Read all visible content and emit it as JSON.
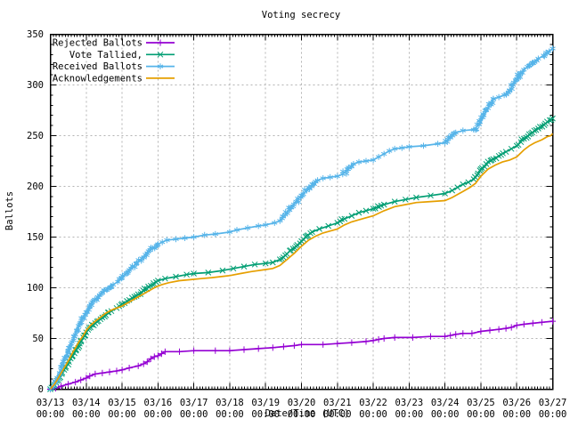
{
  "chart_data": {
    "type": "line",
    "title": "Voting secrecy",
    "xlabel": "Date/Time (UTC)",
    "ylabel": "Ballots",
    "grid": true,
    "legend_position": "top-left-inside",
    "x_axis": {
      "tick_dates": [
        "03/13",
        "03/14",
        "03/15",
        "03/16",
        "03/17",
        "03/18",
        "03/19",
        "03/20",
        "03/21",
        "03/22",
        "03/23",
        "03/24",
        "03/25",
        "03/26",
        "03/27"
      ],
      "tick_time_line": "00:00",
      "range_days": [
        0,
        14
      ],
      "minor_ticks_per_day": 12
    },
    "y_axis": {
      "ticks": [
        0,
        50,
        100,
        150,
        200,
        250,
        300,
        350
      ],
      "range": [
        0,
        350
      ],
      "minor_step": 10
    },
    "colors": {
      "rejected": "#9400d3",
      "tallied": "#009e73",
      "received": "#56b4e9",
      "acknowledgements": "#e69f00",
      "grid": "#b3b3b3",
      "border": "#000000"
    },
    "series": [
      {
        "name": "Rejected Ballots",
        "color": "#9400d3",
        "marker": "plus",
        "points": [
          [
            0,
            0
          ],
          [
            0.15,
            1
          ],
          [
            0.3,
            3
          ],
          [
            0.5,
            5
          ],
          [
            0.7,
            7
          ],
          [
            0.85,
            9
          ],
          [
            1.0,
            11
          ],
          [
            1.1,
            13
          ],
          [
            1.25,
            15
          ],
          [
            1.45,
            16
          ],
          [
            1.65,
            17
          ],
          [
            1.85,
            18
          ],
          [
            2.0,
            19
          ],
          [
            2.2,
            21
          ],
          [
            2.45,
            23
          ],
          [
            2.6,
            25
          ],
          [
            2.7,
            27
          ],
          [
            2.8,
            30
          ],
          [
            2.9,
            32
          ],
          [
            3.0,
            33
          ],
          [
            3.1,
            35
          ],
          [
            3.2,
            37
          ],
          [
            3.6,
            37
          ],
          [
            4.0,
            38
          ],
          [
            4.6,
            38
          ],
          [
            5.0,
            38
          ],
          [
            5.4,
            39
          ],
          [
            5.8,
            40
          ],
          [
            6.2,
            41
          ],
          [
            6.5,
            42
          ],
          [
            6.8,
            43
          ],
          [
            7.0,
            44
          ],
          [
            7.6,
            44
          ],
          [
            8.0,
            45
          ],
          [
            8.4,
            46
          ],
          [
            8.8,
            47
          ],
          [
            9.0,
            48
          ],
          [
            9.15,
            49
          ],
          [
            9.3,
            50
          ],
          [
            9.6,
            51
          ],
          [
            10.1,
            51
          ],
          [
            10.6,
            52
          ],
          [
            11.0,
            52
          ],
          [
            11.15,
            53
          ],
          [
            11.3,
            54
          ],
          [
            11.5,
            55
          ],
          [
            11.75,
            55
          ],
          [
            12.0,
            57
          ],
          [
            12.25,
            58
          ],
          [
            12.5,
            59
          ],
          [
            12.7,
            60
          ],
          [
            12.85,
            61
          ],
          [
            13.0,
            63
          ],
          [
            13.2,
            64
          ],
          [
            13.45,
            65
          ],
          [
            13.7,
            66
          ],
          [
            14.0,
            67
          ]
        ]
      },
      {
        "name": "Vote Tallied,",
        "color": "#009e73",
        "marker": "cross",
        "points": [
          [
            0,
            0
          ],
          [
            0.12,
            4
          ],
          [
            0.22,
            9
          ],
          [
            0.32,
            15
          ],
          [
            0.42,
            21
          ],
          [
            0.52,
            27
          ],
          [
            0.62,
            33
          ],
          [
            0.72,
            39
          ],
          [
            0.82,
            45
          ],
          [
            0.92,
            51
          ],
          [
            1.0,
            56
          ],
          [
            1.12,
            61
          ],
          [
            1.25,
            65
          ],
          [
            1.4,
            69
          ],
          [
            1.55,
            73
          ],
          [
            1.7,
            77
          ],
          [
            1.85,
            80
          ],
          [
            2.0,
            84
          ],
          [
            2.2,
            88
          ],
          [
            2.4,
            92
          ],
          [
            2.6,
            97
          ],
          [
            2.8,
            102
          ],
          [
            3.0,
            107
          ],
          [
            3.2,
            109
          ],
          [
            3.5,
            111
          ],
          [
            3.8,
            113
          ],
          [
            4.0,
            114
          ],
          [
            4.4,
            115
          ],
          [
            4.8,
            117
          ],
          [
            5.1,
            119
          ],
          [
            5.4,
            121
          ],
          [
            5.7,
            123
          ],
          [
            6.0,
            124
          ],
          [
            6.2,
            125
          ],
          [
            6.4,
            128
          ],
          [
            6.55,
            132
          ],
          [
            6.7,
            137
          ],
          [
            6.85,
            141
          ],
          [
            7.0,
            146
          ],
          [
            7.15,
            151
          ],
          [
            7.3,
            155
          ],
          [
            7.5,
            158
          ],
          [
            7.75,
            161
          ],
          [
            8.0,
            164
          ],
          [
            8.2,
            168
          ],
          [
            8.4,
            171
          ],
          [
            8.6,
            174
          ],
          [
            8.8,
            176
          ],
          [
            9.0,
            178
          ],
          [
            9.3,
            182
          ],
          [
            9.6,
            185
          ],
          [
            9.9,
            187
          ],
          [
            10.2,
            189
          ],
          [
            10.6,
            191
          ],
          [
            11.0,
            193
          ],
          [
            11.2,
            196
          ],
          [
            11.35,
            199
          ],
          [
            11.5,
            202
          ],
          [
            11.65,
            204
          ],
          [
            11.8,
            207
          ],
          [
            11.9,
            211
          ],
          [
            12.0,
            217
          ],
          [
            12.15,
            222
          ],
          [
            12.3,
            226
          ],
          [
            12.5,
            230
          ],
          [
            12.7,
            234
          ],
          [
            12.85,
            237
          ],
          [
            13.0,
            240
          ],
          [
            13.2,
            247
          ],
          [
            13.4,
            252
          ],
          [
            13.6,
            257
          ],
          [
            13.8,
            262
          ],
          [
            14.0,
            267
          ]
        ]
      },
      {
        "name": "Received Ballots",
        "color": "#56b4e9",
        "marker": "star",
        "points": [
          [
            0,
            0
          ],
          [
            0.1,
            3
          ],
          [
            0.18,
            9
          ],
          [
            0.26,
            16
          ],
          [
            0.34,
            24
          ],
          [
            0.42,
            31
          ],
          [
            0.5,
            38
          ],
          [
            0.58,
            45
          ],
          [
            0.66,
            52
          ],
          [
            0.74,
            58
          ],
          [
            0.82,
            64
          ],
          [
            0.9,
            70
          ],
          [
            1.0,
            76
          ],
          [
            1.1,
            82
          ],
          [
            1.2,
            87
          ],
          [
            1.32,
            91
          ],
          [
            1.45,
            95
          ],
          [
            1.6,
            99
          ],
          [
            1.75,
            103
          ],
          [
            1.88,
            106
          ],
          [
            2.0,
            110
          ],
          [
            2.12,
            114
          ],
          [
            2.25,
            119
          ],
          [
            2.4,
            124
          ],
          [
            2.55,
            129
          ],
          [
            2.7,
            134
          ],
          [
            2.85,
            139
          ],
          [
            3.0,
            143
          ],
          [
            3.12,
            145
          ],
          [
            3.25,
            147
          ],
          [
            3.5,
            148
          ],
          [
            3.75,
            149
          ],
          [
            4.0,
            150
          ],
          [
            4.3,
            152
          ],
          [
            4.6,
            153
          ],
          [
            5.0,
            155
          ],
          [
            5.2,
            157
          ],
          [
            5.5,
            159
          ],
          [
            5.8,
            161
          ],
          [
            6.0,
            162
          ],
          [
            6.25,
            164
          ],
          [
            6.4,
            166
          ],
          [
            6.55,
            172
          ],
          [
            6.7,
            179
          ],
          [
            6.85,
            185
          ],
          [
            7.0,
            191
          ],
          [
            7.15,
            196
          ],
          [
            7.3,
            202
          ],
          [
            7.45,
            206
          ],
          [
            7.6,
            208
          ],
          [
            7.8,
            209
          ],
          [
            8.0,
            210
          ],
          [
            8.15,
            212
          ],
          [
            8.3,
            217
          ],
          [
            8.45,
            222
          ],
          [
            8.6,
            224
          ],
          [
            8.8,
            225
          ],
          [
            9.0,
            226
          ],
          [
            9.15,
            229
          ],
          [
            9.3,
            232
          ],
          [
            9.45,
            235
          ],
          [
            9.6,
            237
          ],
          [
            9.8,
            238
          ],
          [
            10.0,
            239
          ],
          [
            10.4,
            240
          ],
          [
            10.8,
            242
          ],
          [
            11.0,
            243
          ],
          [
            11.15,
            248
          ],
          [
            11.3,
            253
          ],
          [
            11.5,
            255
          ],
          [
            11.8,
            256
          ],
          [
            11.95,
            261
          ],
          [
            12.05,
            268
          ],
          [
            12.15,
            275
          ],
          [
            12.25,
            281
          ],
          [
            12.35,
            286
          ],
          [
            12.5,
            288
          ],
          [
            12.65,
            290
          ],
          [
            12.8,
            294
          ],
          [
            12.9,
            300
          ],
          [
            13.0,
            306
          ],
          [
            13.1,
            311
          ],
          [
            13.2,
            315
          ],
          [
            13.3,
            318
          ],
          [
            13.45,
            322
          ],
          [
            13.6,
            326
          ],
          [
            13.75,
            329
          ],
          [
            13.9,
            333
          ],
          [
            14.0,
            336
          ]
        ]
      },
      {
        "name": "Acknowledgements",
        "color": "#e69f00",
        "marker": "none",
        "points": [
          [
            0,
            0
          ],
          [
            0.12,
            5
          ],
          [
            0.22,
            11
          ],
          [
            0.32,
            17
          ],
          [
            0.42,
            23
          ],
          [
            0.52,
            29
          ],
          [
            0.62,
            36
          ],
          [
            0.72,
            42
          ],
          [
            0.82,
            48
          ],
          [
            0.92,
            53
          ],
          [
            1.0,
            58
          ],
          [
            1.12,
            63
          ],
          [
            1.25,
            67
          ],
          [
            1.4,
            71
          ],
          [
            1.55,
            75
          ],
          [
            1.7,
            78
          ],
          [
            1.85,
            80
          ],
          [
            2.0,
            82
          ],
          [
            2.2,
            86
          ],
          [
            2.4,
            90
          ],
          [
            2.6,
            94
          ],
          [
            2.8,
            98
          ],
          [
            2.95,
            101
          ],
          [
            3.1,
            103
          ],
          [
            3.3,
            105
          ],
          [
            3.6,
            107
          ],
          [
            3.9,
            108
          ],
          [
            4.2,
            109
          ],
          [
            4.5,
            110
          ],
          [
            5.0,
            112
          ],
          [
            5.3,
            114
          ],
          [
            5.6,
            116
          ],
          [
            6.0,
            118
          ],
          [
            6.2,
            119
          ],
          [
            6.4,
            122
          ],
          [
            6.6,
            128
          ],
          [
            6.8,
            134
          ],
          [
            7.0,
            141
          ],
          [
            7.2,
            147
          ],
          [
            7.4,
            151
          ],
          [
            7.6,
            154
          ],
          [
            7.8,
            156
          ],
          [
            8.0,
            158
          ],
          [
            8.2,
            162
          ],
          [
            8.4,
            165
          ],
          [
            8.6,
            167
          ],
          [
            8.8,
            169
          ],
          [
            9.0,
            171
          ],
          [
            9.3,
            176
          ],
          [
            9.6,
            180
          ],
          [
            9.9,
            182
          ],
          [
            10.2,
            184
          ],
          [
            10.6,
            185
          ],
          [
            11.0,
            186
          ],
          [
            11.2,
            189
          ],
          [
            11.35,
            192
          ],
          [
            11.5,
            195
          ],
          [
            11.7,
            199
          ],
          [
            11.85,
            203
          ],
          [
            12.0,
            210
          ],
          [
            12.2,
            217
          ],
          [
            12.4,
            221
          ],
          [
            12.6,
            224
          ],
          [
            12.8,
            226
          ],
          [
            13.0,
            229
          ],
          [
            13.2,
            236
          ],
          [
            13.35,
            240
          ],
          [
            13.5,
            243
          ],
          [
            13.7,
            246
          ],
          [
            13.85,
            249
          ],
          [
            13.95,
            250
          ],
          [
            14.0,
            252
          ]
        ]
      }
    ]
  }
}
